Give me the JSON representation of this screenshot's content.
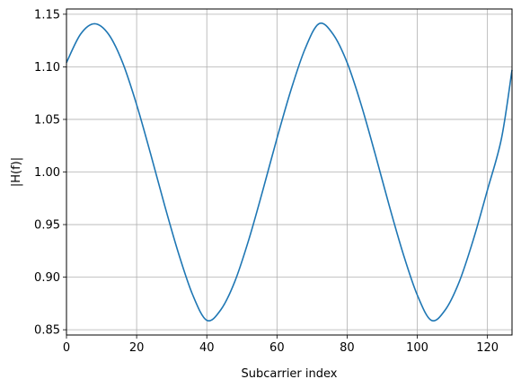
{
  "chart_data": {
    "type": "line",
    "title": "",
    "xlabel": "Subcarrier index",
    "ylabel": "|H(f)|",
    "xlim": [
      0,
      127
    ],
    "ylim": [
      0.845,
      1.155
    ],
    "grid": true,
    "xticks": [
      0,
      20,
      40,
      60,
      80,
      100,
      120
    ],
    "xtick_labels": [
      "0",
      "20",
      "40",
      "60",
      "80",
      "100",
      "120"
    ],
    "yticks": [
      0.85,
      0.9,
      0.95,
      1.0,
      1.05,
      1.1,
      1.15
    ],
    "ytick_labels": [
      "0.85",
      "0.90",
      "0.95",
      "1.00",
      "1.05",
      "1.10",
      "1.15"
    ],
    "series": [
      {
        "color": "#1f77b4",
        "x": [
          0,
          4,
          8,
          12,
          16,
          20,
          24,
          28,
          32,
          36,
          40,
          44,
          48,
          52,
          56,
          60,
          64,
          68,
          72,
          76,
          80,
          84,
          88,
          92,
          96,
          100,
          104,
          108,
          112,
          116,
          120,
          124,
          127
        ],
        "y": [
          1.104,
          1.131,
          1.141,
          1.131,
          1.104,
          1.064,
          1.017,
          0.968,
          0.922,
          0.883,
          0.859,
          0.869,
          0.896,
          0.936,
          0.983,
          1.032,
          1.078,
          1.117,
          1.141,
          1.131,
          1.104,
          1.064,
          1.017,
          0.968,
          0.922,
          0.883,
          0.859,
          0.869,
          0.896,
          0.936,
          0.983,
          1.032,
          1.097
        ]
      }
    ]
  }
}
